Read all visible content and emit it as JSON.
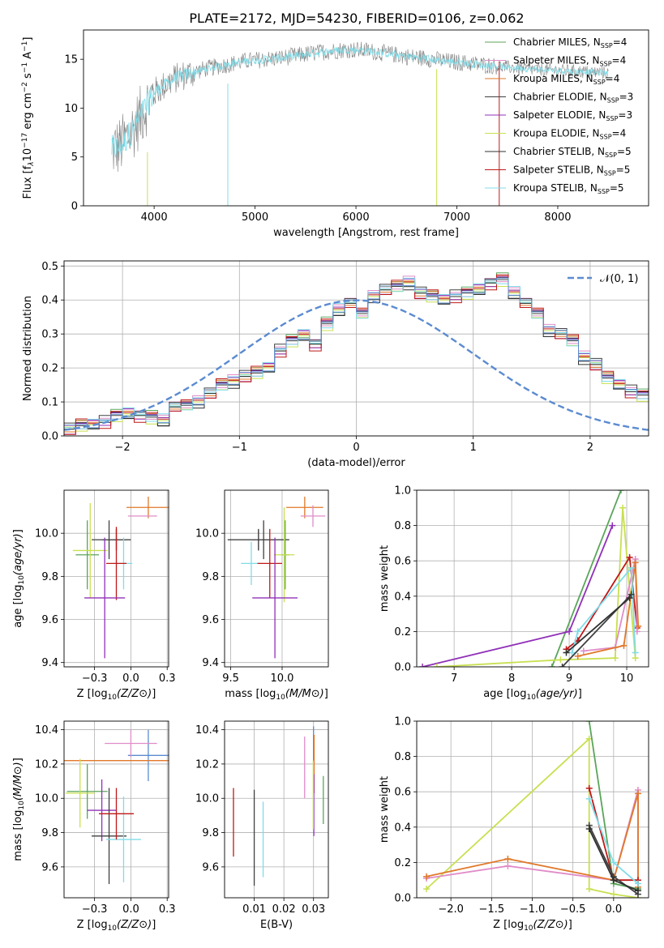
{
  "figure_title": "PLATE=2172, MJD=54230, FIBERID=0106, z=0.062",
  "model_colors": [
    "#5aa55a",
    "#e08cc8",
    "#e0782a",
    "#404040",
    "#9030b8",
    "#c8e050",
    "#303030",
    "#c01818",
    "#80dce8"
  ],
  "legend_entries": [
    {
      "pre": "Chabrier MILES, N",
      "sub": "SSP",
      "post": "=4",
      "color": "#5aa55a"
    },
    {
      "pre": "Salpeter MILES, N",
      "sub": "SSP",
      "post": "=4",
      "color": "#e08cc8"
    },
    {
      "pre": "Kroupa MILES, N",
      "sub": "SSP",
      "post": "=4",
      "color": "#e0782a"
    },
    {
      "pre": "Chabrier ELODIE, N",
      "sub": "SSP",
      "post": "=3",
      "color": "#404040"
    },
    {
      "pre": "Salpeter ELODIE, N",
      "sub": "SSP",
      "post": "=3",
      "color": "#9030b8"
    },
    {
      "pre": "Kroupa ELODIE, N",
      "sub": "SSP",
      "post": "=4",
      "color": "#c8e050"
    },
    {
      "pre": "Chabrier STELIB, N",
      "sub": "SSP",
      "post": "=5",
      "color": "#303030"
    },
    {
      "pre": "Salpeter STELIB, N",
      "sub": "SSP",
      "post": "=5",
      "color": "#c01818"
    },
    {
      "pre": "Kroupa STELIB, N",
      "sub": "SSP",
      "post": "=5",
      "color": "#80dce8"
    }
  ],
  "chart_data": [
    {
      "id": "spectrum",
      "type": "line",
      "xlabel": "wavelength [Angstrom, rest frame]",
      "ylabel_parts": [
        "Flux [f",
        "λ",
        "10",
        "−17",
        " erg cm",
        "−2",
        " s",
        "−1",
        " A",
        "−1",
        "]"
      ],
      "xlim": [
        3300,
        8900
      ],
      "ylim": [
        0,
        18
      ],
      "xticks": [
        4000,
        5000,
        6000,
        7000,
        8000
      ],
      "yticks": [
        0,
        5,
        10,
        15
      ],
      "data_color": "#808080",
      "model_color": "#80dce8",
      "continuum": {
        "x": [
          3580,
          3650,
          3700,
          3800,
          3900,
          3950,
          4000,
          4100,
          4200,
          4300,
          4500,
          4700,
          4900,
          5100,
          5300,
          5500,
          5700,
          5900,
          6100,
          6300,
          6500,
          6700,
          6900,
          7100,
          7300,
          7400,
          7500,
          7700,
          7900,
          8100,
          8300,
          8500
        ],
        "y": [
          5.8,
          6.0,
          6.5,
          8.0,
          9.8,
          10.8,
          11.6,
          12.3,
          13.0,
          13.4,
          14.0,
          14.4,
          14.8,
          15.0,
          15.2,
          15.5,
          15.8,
          16.0,
          15.9,
          15.6,
          15.3,
          15.1,
          14.8,
          14.6,
          14.4,
          14.3,
          14.2,
          14.0,
          13.9,
          13.8,
          13.7,
          13.6
        ]
      },
      "spike_lines": [
        {
          "x": 3934,
          "y0": 0,
          "y1": 5.5,
          "color": "#c8e050"
        },
        {
          "x": 4730,
          "y0": 0,
          "y1": 12.5,
          "color": "#80dce8"
        },
        {
          "x": 6800,
          "y0": 0,
          "y1": 14.0,
          "color": "#c8e050"
        },
        {
          "x": 7420,
          "y0": 0,
          "y1": 14.8,
          "color": "#c01818"
        }
      ]
    },
    {
      "id": "residuals",
      "type": "histogram",
      "xlabel": "(data-model)/error",
      "ylabel": "Normed distribution",
      "xlim": [
        -2.5,
        2.5
      ],
      "ylim": [
        0,
        0.515
      ],
      "xticks": [
        -2,
        -1,
        0,
        1,
        2
      ],
      "yticks": [
        0.0,
        0.1,
        0.2,
        0.3,
        0.4,
        0.5
      ],
      "bin_width": 0.1,
      "bin_start": -2.5,
      "base_bins": [
        0.02,
        0.03,
        0.033,
        0.04,
        0.06,
        0.065,
        0.06,
        0.055,
        0.045,
        0.085,
        0.09,
        0.1,
        0.125,
        0.15,
        0.16,
        0.175,
        0.185,
        0.2,
        0.25,
        0.28,
        0.295,
        0.27,
        0.33,
        0.37,
        0.39,
        0.36,
        0.41,
        0.43,
        0.44,
        0.45,
        0.42,
        0.41,
        0.4,
        0.41,
        0.42,
        0.43,
        0.45,
        0.46,
        0.42,
        0.39,
        0.36,
        0.31,
        0.3,
        0.28,
        0.23,
        0.21,
        0.17,
        0.15,
        0.13,
        0.12,
        0.09,
        0.08,
        0.075,
        0.06,
        0.055,
        0.045,
        0.04,
        0.035,
        0.03,
        0.028
      ],
      "gaussian_label": "𝒩(0, 1)",
      "gaussian_color": "#5b8bd0"
    },
    {
      "id": "age_vs_z",
      "type": "errorbar",
      "xlabel": "Z [log10(Z/Z⊙)]",
      "ylabel": "age  [log10(age/yr)]",
      "xlim": [
        -0.46,
        0.26
      ],
      "ylim": [
        9.38,
        10.2
      ],
      "xticks": [
        -0.25,
        0.0,
        0.25
      ],
      "yticks": [
        9.4,
        9.6,
        9.8,
        10.0
      ],
      "points": [
        {
          "x": 0.12,
          "xerr": 0.15,
          "y": 10.12,
          "yerr": 0.05,
          "color": "#e0782a"
        },
        {
          "x": 0.08,
          "xerr": 0.1,
          "y": 10.08,
          "yerr": 0.0,
          "color": "#e08cc8"
        },
        {
          "x": -0.1,
          "xerr": 0.1,
          "y": 9.97,
          "yerr": 0.05,
          "color": "#303030"
        },
        {
          "x": -0.3,
          "xerr": 0.08,
          "y": 9.9,
          "yerr": 0.16,
          "color": "#5aa55a"
        },
        {
          "x": -0.28,
          "xerr": 0.12,
          "y": 9.92,
          "yerr": 0.22,
          "color": "#c8e050"
        },
        {
          "x": -0.15,
          "xerr": 0.12,
          "y": 9.97,
          "yerr": 0.09,
          "color": "#404040"
        },
        {
          "x": -0.05,
          "xerr": 0.06,
          "y": 9.86,
          "yerr": 0.12,
          "color": "#80dce8"
        },
        {
          "x": -0.1,
          "xerr": 0.07,
          "y": 9.86,
          "yerr": 0.17,
          "color": "#c01818"
        },
        {
          "x": -0.18,
          "xerr": 0.14,
          "y": 9.7,
          "yerr": 0.28,
          "color": "#9030b8"
        }
      ]
    },
    {
      "id": "age_vs_mass",
      "type": "errorbar",
      "xlabel": "mass [log10(M/M⊙)]",
      "ylabel": "",
      "xlim": [
        9.44,
        10.45
      ],
      "ylim": [
        9.38,
        10.2
      ],
      "xticks": [
        9.5,
        10.0
      ],
      "yticks": [
        9.4,
        9.6,
        9.8,
        10.0
      ],
      "points": [
        {
          "x": 10.22,
          "xerr": 0.18,
          "y": 10.12,
          "yerr": 0.05,
          "color": "#e0782a"
        },
        {
          "x": 10.3,
          "xerr": 0.12,
          "y": 10.08,
          "yerr": 0.05,
          "color": "#e08cc8"
        },
        {
          "x": 9.77,
          "xerr": 0.3,
          "y": 9.97,
          "yerr": 0.05,
          "color": "#303030"
        },
        {
          "x": 10.03,
          "xerr": 0.04,
          "y": 9.9,
          "yerr": 0.16,
          "color": "#5aa55a"
        },
        {
          "x": 10.02,
          "xerr": 0.1,
          "y": 9.9,
          "yerr": 0.22,
          "color": "#c8e050"
        },
        {
          "x": 9.82,
          "xerr": 0.12,
          "y": 9.97,
          "yerr": 0.09,
          "color": "#404040"
        },
        {
          "x": 9.7,
          "xerr": 0.1,
          "y": 9.86,
          "yerr": 0.1,
          "color": "#80dce8"
        },
        {
          "x": 9.88,
          "xerr": 0.12,
          "y": 9.86,
          "yerr": 0.16,
          "color": "#c01818"
        },
        {
          "x": 9.93,
          "xerr": 0.22,
          "y": 9.7,
          "yerr": 0.28,
          "color": "#9030b8"
        }
      ]
    },
    {
      "id": "weight_vs_age",
      "type": "line",
      "xlabel": "age  [log10(age/yr)]",
      "ylabel": "mass weight",
      "xlim": [
        6.35,
        10.38
      ],
      "ylim": [
        0,
        1.0
      ],
      "xticks": [
        7,
        8,
        9,
        10
      ],
      "yticks": [
        0.0,
        0.2,
        0.4,
        0.6,
        0.8,
        1.0
      ],
      "series": [
        {
          "color": "#5aa55a",
          "x": [
            8.7,
            9.9
          ],
          "y": [
            0.0,
            1.0
          ]
        },
        {
          "color": "#9030b8",
          "x": [
            6.45,
            9.0,
            9.75
          ],
          "y": [
            0.0,
            0.2,
            0.8
          ]
        },
        {
          "color": "#c8e050",
          "x": [
            6.7,
            8.85,
            9.8,
            9.93,
            10.15
          ],
          "y": [
            0.0,
            0.04,
            0.05,
            0.9,
            0.05
          ]
        },
        {
          "color": "#c01818",
          "x": [
            8.95,
            9.15,
            10.05,
            10.18
          ],
          "y": [
            0.1,
            0.15,
            0.62,
            0.22
          ]
        },
        {
          "color": "#e08cc8",
          "x": [
            9.25,
            9.8,
            10.15,
            10.18
          ],
          "y": [
            0.09,
            0.11,
            0.61,
            0.2
          ]
        },
        {
          "color": "#e0782a",
          "x": [
            9.15,
            9.95,
            10.15,
            10.2
          ],
          "y": [
            0.06,
            0.12,
            0.59,
            0.23
          ]
        },
        {
          "color": "#80dce8",
          "x": [
            9.05,
            9.15,
            10.08,
            10.15
          ],
          "y": [
            0.08,
            0.2,
            0.56,
            0.08
          ]
        },
        {
          "color": "#404040",
          "x": [
            8.88,
            10.08
          ],
          "y": [
            0.0,
            0.41
          ]
        },
        {
          "color": "#303030",
          "x": [
            8.95,
            10.05
          ],
          "y": [
            0.08,
            0.39
          ]
        }
      ]
    },
    {
      "id": "mass_vs_z",
      "type": "errorbar",
      "xlabel": "Z [log10(Z/Z⊙)]",
      "ylabel": "mass [log10(M/M⊙)]",
      "xlim": [
        -0.46,
        0.26
      ],
      "ylim": [
        9.42,
        10.45
      ],
      "xticks": [
        -0.25,
        0.0,
        0.25
      ],
      "yticks": [
        9.6,
        9.8,
        10.0,
        10.2,
        10.4
      ],
      "points": [
        {
          "x": 0.12,
          "xerr": 0.14,
          "y": 10.25,
          "yerr": 0.15,
          "color": "#5b8bd0"
        },
        {
          "x": 0.0,
          "xerr": 0.18,
          "y": 10.32,
          "yerr": 0.08,
          "color": "#e08cc8"
        },
        {
          "x": -0.1,
          "xerr": 0.37,
          "y": 10.22,
          "yerr": 0.0,
          "color": "#e0782a"
        },
        {
          "x": -0.3,
          "xerr": 0.14,
          "y": 10.04,
          "yerr": 0.16,
          "color": "#5aa55a"
        },
        {
          "x": -0.35,
          "xerr": 0.1,
          "y": 10.03,
          "yerr": 0.2,
          "color": "#c8e050"
        },
        {
          "x": -0.2,
          "xerr": 0.1,
          "y": 9.93,
          "yerr": 0.18,
          "color": "#9030b8"
        },
        {
          "x": -0.15,
          "xerr": 0.12,
          "y": 9.78,
          "yerr": 0.28,
          "color": "#404040"
        },
        {
          "x": -0.05,
          "xerr": 0.12,
          "y": 9.76,
          "yerr": 0.25,
          "color": "#80dce8"
        },
        {
          "x": -0.1,
          "xerr": 0.12,
          "y": 9.91,
          "yerr": 0.15,
          "color": "#c01818"
        }
      ]
    },
    {
      "id": "mass_vs_ebv",
      "type": "errorbar",
      "xlabel": "E(B-V)",
      "ylabel": "",
      "xlim": [
        0.0,
        0.035
      ],
      "ylim": [
        9.42,
        10.45
      ],
      "xticks": [
        0.01,
        0.02,
        0.03
      ],
      "yticks": [
        9.6,
        9.8,
        10.0,
        10.2,
        10.4
      ],
      "points": [
        {
          "x": 0.003,
          "xerr": 0,
          "y": 9.86,
          "yerr": 0.2,
          "color": "#c01818"
        },
        {
          "x": 0.01,
          "xerr": 0,
          "y": 9.77,
          "yerr": 0.28,
          "color": "#404040"
        },
        {
          "x": 0.013,
          "xerr": 0,
          "y": 9.76,
          "yerr": 0.22,
          "color": "#80dce8"
        },
        {
          "x": 0.027,
          "xerr": 0,
          "y": 10.18,
          "yerr": 0.18,
          "color": "#e08cc8"
        },
        {
          "x": 0.03,
          "xerr": 0,
          "y": 10.25,
          "yerr": 0.17,
          "color": "#5b8bd0"
        },
        {
          "x": 0.0302,
          "xerr": 0,
          "y": 10.2,
          "yerr": 0.17,
          "color": "#e0782a"
        },
        {
          "x": 0.0301,
          "xerr": 0,
          "y": 9.96,
          "yerr": 0.18,
          "color": "#9030b8"
        },
        {
          "x": 0.0299,
          "xerr": 0,
          "y": 10.02,
          "yerr": 0.2,
          "color": "#c8e050"
        },
        {
          "x": 0.0333,
          "xerr": 0,
          "y": 9.99,
          "yerr": 0.14,
          "color": "#5aa55a"
        }
      ]
    },
    {
      "id": "weight_vs_z",
      "type": "line",
      "xlabel": "Z [log10(Z/Z⊙)]",
      "ylabel": "mass weight",
      "xlim": [
        -2.42,
        0.43
      ],
      "ylim": [
        0,
        1.0
      ],
      "xticks": [
        -2.0,
        -1.5,
        -1.0,
        -0.5,
        0.0
      ],
      "yticks": [
        0.0,
        0.2,
        0.4,
        0.6,
        0.8,
        1.0
      ],
      "series": [
        {
          "color": "#c8e050",
          "x": [
            -2.3,
            -0.3,
            -0.3,
            0.0,
            0.3
          ],
          "y": [
            0.05,
            0.9,
            0.05,
            0.02,
            0.0
          ]
        },
        {
          "color": "#e08cc8",
          "x": [
            -2.3,
            -1.3,
            0.0,
            0.3,
            0.3
          ],
          "y": [
            0.11,
            0.18,
            0.1,
            0.61,
            0.05
          ]
        },
        {
          "color": "#e0782a",
          "x": [
            -2.3,
            -1.3,
            0.0,
            0.3,
            0.3
          ],
          "y": [
            0.12,
            0.22,
            0.1,
            0.59,
            0.06
          ]
        },
        {
          "color": "#5aa55a",
          "x": [
            -0.3,
            0.0,
            0.3
          ],
          "y": [
            1.0,
            0.08,
            0.05
          ]
        },
        {
          "color": "#c01818",
          "x": [
            -0.3,
            0.0,
            0.3
          ],
          "y": [
            0.62,
            0.1,
            0.1
          ]
        },
        {
          "color": "#80dce8",
          "x": [
            -0.3,
            0.0,
            0.3
          ],
          "y": [
            0.56,
            0.2,
            0.08
          ]
        },
        {
          "color": "#404040",
          "x": [
            -0.3,
            0.0,
            0.3
          ],
          "y": [
            0.41,
            0.12,
            0.02
          ]
        },
        {
          "color": "#303030",
          "x": [
            -0.3,
            0.0,
            0.3
          ],
          "y": [
            0.39,
            0.1,
            0.04
          ]
        }
      ]
    }
  ]
}
